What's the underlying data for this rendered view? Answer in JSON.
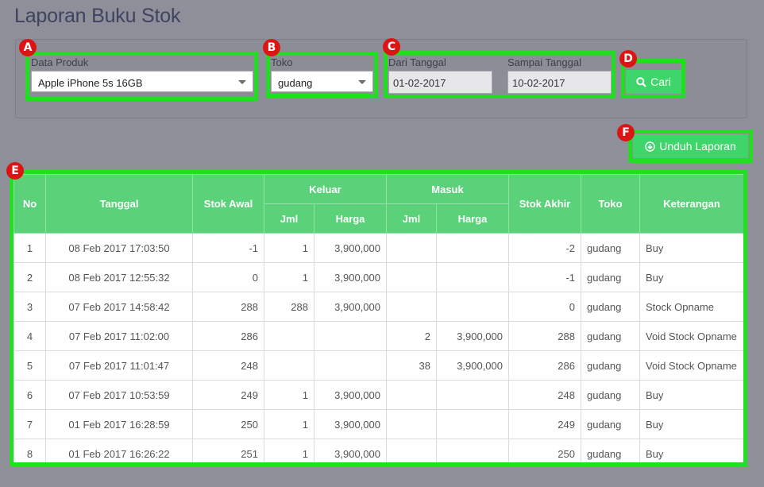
{
  "page": {
    "title": "Laporan Buku Stok"
  },
  "filters": {
    "product_label": "Data Produk",
    "product_value": "Apple iPhone 5s 16GB",
    "store_label": "Toko",
    "store_value": "gudang",
    "from_label": "Dari Tanggal",
    "from_value": "01-02-2017",
    "to_label": "Sampai Tanggal",
    "to_value": "10-02-2017",
    "search_label": "Cari"
  },
  "download_label": "Unduh Laporan",
  "badges": [
    "A",
    "B",
    "C",
    "D",
    "E",
    "F"
  ],
  "table": {
    "headers": {
      "no": "No",
      "date": "Tanggal",
      "start_stock": "Stok Awal",
      "out": "Keluar",
      "in": "Masuk",
      "qty": "Jml",
      "price": "Harga",
      "end_stock": "Stok Akhir",
      "store": "Toko",
      "note": "Keterangan"
    },
    "rows": [
      {
        "no": "1",
        "date": "08 Feb 2017 17:03:50",
        "start": "-1",
        "out_qty": "1",
        "out_price": "3,900,000",
        "in_qty": "",
        "in_price": "",
        "end": "-2",
        "store": "gudang",
        "note": "Buy"
      },
      {
        "no": "2",
        "date": "08 Feb 2017 12:55:32",
        "start": "0",
        "out_qty": "1",
        "out_price": "3,900,000",
        "in_qty": "",
        "in_price": "",
        "end": "-1",
        "store": "gudang",
        "note": "Buy"
      },
      {
        "no": "3",
        "date": "07 Feb 2017 14:58:42",
        "start": "288",
        "out_qty": "288",
        "out_price": "3,900,000",
        "in_qty": "",
        "in_price": "",
        "end": "0",
        "store": "gudang",
        "note": "Stock Opname"
      },
      {
        "no": "4",
        "date": "07 Feb 2017 11:02:00",
        "start": "286",
        "out_qty": "",
        "out_price": "",
        "in_qty": "2",
        "in_price": "3,900,000",
        "end": "288",
        "store": "gudang",
        "note": "Void Stock Opname"
      },
      {
        "no": "5",
        "date": "07 Feb 2017 11:01:47",
        "start": "248",
        "out_qty": "",
        "out_price": "",
        "in_qty": "38",
        "in_price": "3,900,000",
        "end": "286",
        "store": "gudang",
        "note": "Void Stock Opname"
      },
      {
        "no": "6",
        "date": "07 Feb 2017 10:53:59",
        "start": "249",
        "out_qty": "1",
        "out_price": "3,900,000",
        "in_qty": "",
        "in_price": "",
        "end": "248",
        "store": "gudang",
        "note": "Buy"
      },
      {
        "no": "7",
        "date": "01 Feb 2017 16:28:59",
        "start": "250",
        "out_qty": "1",
        "out_price": "3,900,000",
        "in_qty": "",
        "in_price": "",
        "end": "249",
        "store": "gudang",
        "note": "Buy"
      },
      {
        "no": "8",
        "date": "01 Feb 2017 16:26:22",
        "start": "251",
        "out_qty": "1",
        "out_price": "3,900,000",
        "in_qty": "",
        "in_price": "",
        "end": "250",
        "store": "gudang",
        "note": "Buy"
      }
    ]
  },
  "colors": {
    "accent_green": "#3ed66a",
    "highlight": "#22dd22",
    "badge_red": "#dd1414",
    "header_green": "#5bd17a"
  }
}
